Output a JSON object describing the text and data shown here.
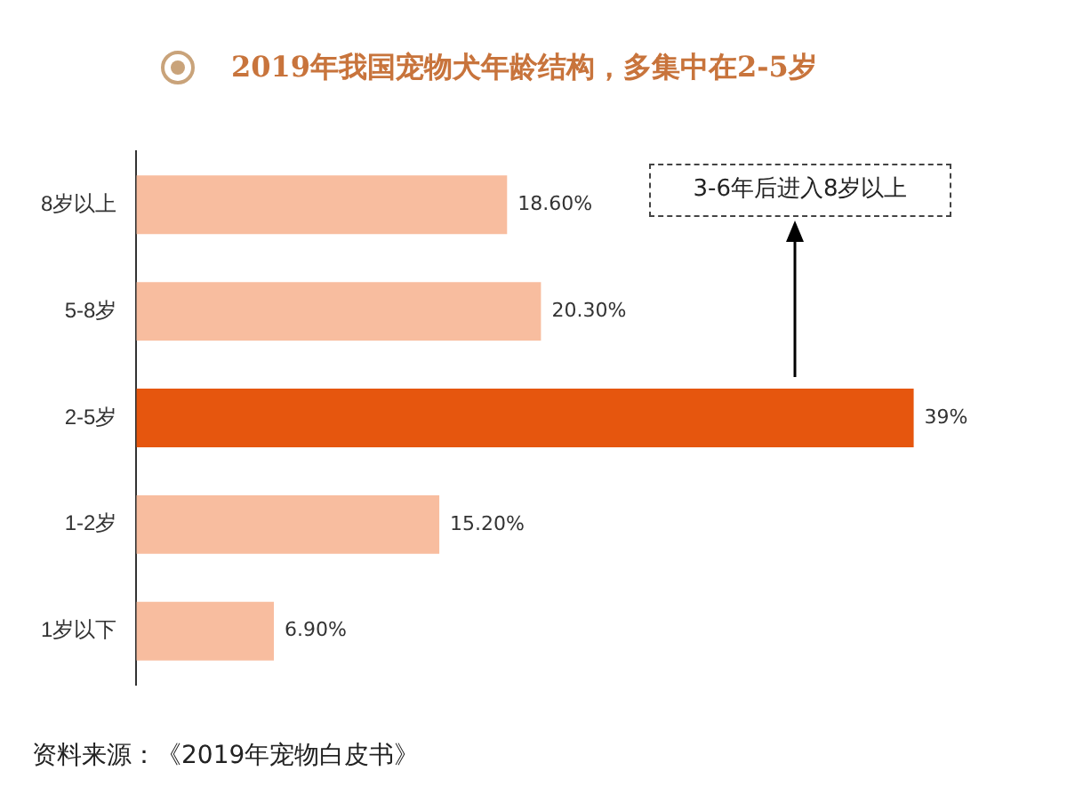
{
  "chart_data": {
    "type": "bar",
    "orientation": "horizontal",
    "title": "2019年我国宠物犬年龄结构，多集中在2-5岁",
    "categories": [
      "8岁以上",
      "5-8岁",
      "2-5岁",
      "1-2岁",
      "1岁以下"
    ],
    "values": [
      18.6,
      20.3,
      39,
      15.2,
      6.9
    ],
    "colors": [
      "#f8bd9f",
      "#f8bd9f",
      "#e6560e",
      "#f8bd9f",
      "#f8bd9f"
    ],
    "value_labels": [
      "18.60%",
      "20.30%",
      "39%",
      "15.20%",
      "6.90%"
    ],
    "annotations": [
      "3-6年后进入8岁以上",
      "资料来源：《2019年宠物白皮书》"
    ],
    "legend": false
  }
}
